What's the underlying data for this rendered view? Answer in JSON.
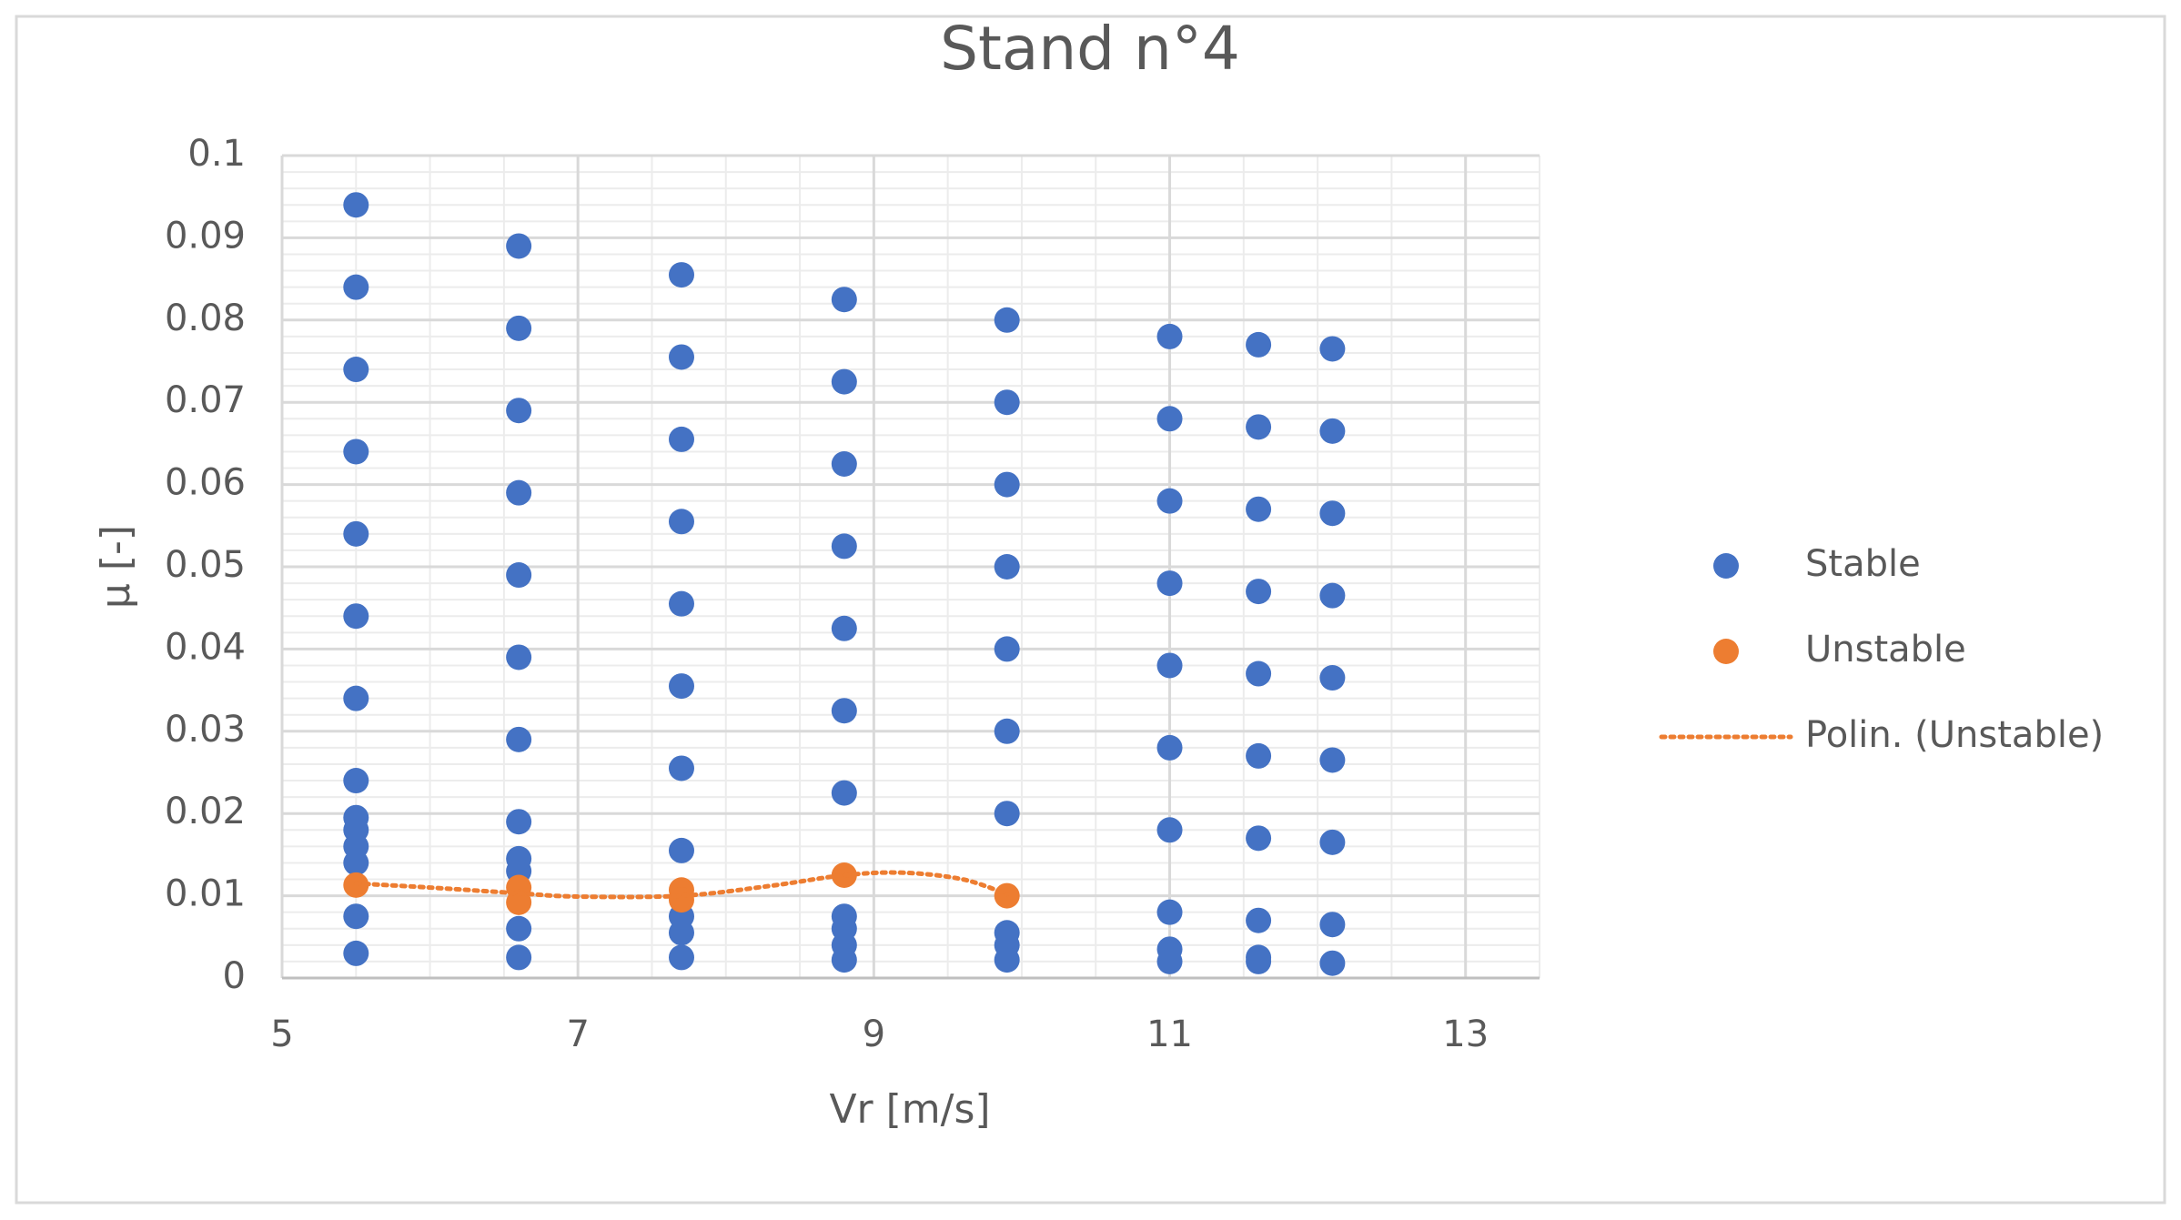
{
  "chart_data": {
    "type": "scatter",
    "title": "Stand n°4",
    "x_label": "Vr [m/s]",
    "y_label": "μ [-]",
    "xlim": [
      5,
      13.5
    ],
    "xticks": [
      5,
      7,
      9,
      11,
      13
    ],
    "ylim": [
      0,
      0.1
    ],
    "yticks": [
      0,
      0.01,
      0.02,
      0.03,
      0.04,
      0.05,
      0.06,
      0.07,
      0.08,
      0.09,
      0.1
    ],
    "grid": true,
    "xminor": 0.5,
    "yminor": 0.002,
    "legend": "right",
    "series": [
      {
        "name": "Stable",
        "kind": "points",
        "color": "#4472c4",
        "x": [
          5.5,
          5.5,
          5.5,
          5.5,
          5.5,
          5.5,
          5.5,
          5.5,
          5.5,
          5.5,
          5.5,
          5.5,
          5.5,
          5.5,
          6.6,
          6.6,
          6.6,
          6.6,
          6.6,
          6.6,
          6.6,
          6.6,
          6.6,
          6.6,
          6.6,
          6.6,
          7.7,
          7.7,
          7.7,
          7.7,
          7.7,
          7.7,
          7.7,
          7.7,
          7.7,
          7.7,
          7.7,
          8.8,
          8.8,
          8.8,
          8.8,
          8.8,
          8.8,
          8.8,
          8.8,
          8.8,
          8.8,
          8.8,
          9.9,
          9.9,
          9.9,
          9.9,
          9.9,
          9.9,
          9.9,
          9.9,
          9.9,
          9.9,
          11.0,
          11.0,
          11.0,
          11.0,
          11.0,
          11.0,
          11.0,
          11.0,
          11.0,
          11.0,
          11.6,
          11.6,
          11.6,
          11.6,
          11.6,
          11.6,
          11.6,
          11.6,
          11.6,
          11.6,
          12.1,
          12.1,
          12.1,
          12.1,
          12.1,
          12.1,
          12.1,
          12.1,
          12.1
        ],
        "values": [
          0.094,
          0.084,
          0.074,
          0.064,
          0.054,
          0.044,
          0.034,
          0.024,
          0.0195,
          0.018,
          0.016,
          0.014,
          0.0075,
          0.003,
          0.089,
          0.079,
          0.069,
          0.059,
          0.049,
          0.039,
          0.029,
          0.019,
          0.0145,
          0.013,
          0.006,
          0.0025,
          0.0855,
          0.0755,
          0.0655,
          0.0555,
          0.0455,
          0.0355,
          0.0255,
          0.0155,
          0.0075,
          0.0055,
          0.0025,
          0.0825,
          0.0725,
          0.0625,
          0.0525,
          0.0425,
          0.0325,
          0.0225,
          0.0075,
          0.006,
          0.004,
          0.0022,
          0.08,
          0.07,
          0.06,
          0.05,
          0.04,
          0.03,
          0.02,
          0.0055,
          0.004,
          0.0022,
          0.078,
          0.068,
          0.058,
          0.048,
          0.038,
          0.028,
          0.018,
          0.008,
          0.0035,
          0.002,
          0.077,
          0.067,
          0.057,
          0.047,
          0.037,
          0.027,
          0.017,
          0.007,
          0.0025,
          0.002,
          0.0765,
          0.0665,
          0.0565,
          0.0465,
          0.0365,
          0.0265,
          0.0165,
          0.0065,
          0.0018
        ]
      },
      {
        "name": "Unstable",
        "kind": "points",
        "color": "#ed7d31",
        "x": [
          5.5,
          6.6,
          6.6,
          7.7,
          7.7,
          8.8,
          9.9
        ],
        "values": [
          0.0113,
          0.011,
          0.0092,
          0.0107,
          0.0095,
          0.0125,
          0.01
        ]
      },
      {
        "name": "Polin. (Unstable)",
        "kind": "trendline",
        "color": "#ed7d31",
        "x": [
          5.5,
          6,
          6.6,
          7,
          7.7,
          8.3,
          8.8,
          9.2,
          9.6,
          9.9
        ],
        "values": [
          0.0115,
          0.011,
          0.0103,
          0.0099,
          0.01,
          0.0112,
          0.0125,
          0.0128,
          0.012,
          0.0102
        ]
      }
    ]
  }
}
